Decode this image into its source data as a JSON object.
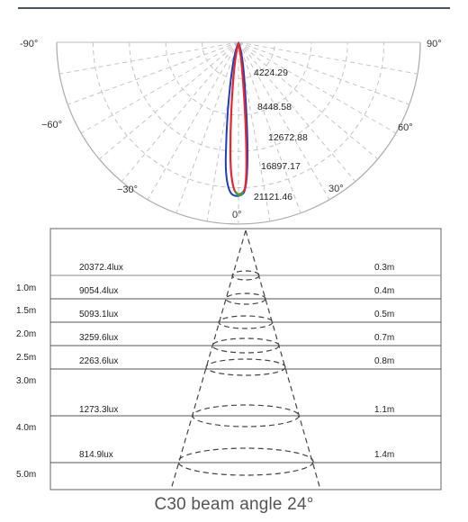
{
  "polar": {
    "angle_labels": {
      "neg90": "-90°",
      "pos90": "90°",
      "neg60": "−60°",
      "pos60": "60°",
      "neg30": "−30°",
      "pos30": "30°",
      "zero": "0°"
    },
    "rings": [
      "4224.29",
      "8448.58",
      "12672.88",
      "16897.17",
      "21121.46"
    ],
    "curve_colors": {
      "red": "#e8262b",
      "blue": "#1b3fbf",
      "green": "#2aa84a"
    }
  },
  "cone": {
    "rows": [
      {
        "height": "",
        "lux": "20372.4lux",
        "diameter": "0.3m"
      },
      {
        "height": "1.0m",
        "lux": "9054.4lux",
        "diameter": "0.4m"
      },
      {
        "height": "1.5m",
        "lux": "5093.1lux",
        "diameter": "0.5m"
      },
      {
        "height": "2.0m",
        "lux": "3259.6lux",
        "diameter": "0.7m"
      },
      {
        "height": "2.5m",
        "lux": "2263.6lux",
        "diameter": "0.8m"
      },
      {
        "height": "3.0m",
        "lux": "",
        "diameter": ""
      },
      {
        "height": "4.0m",
        "lux": "1273.3lux",
        "diameter": "1.1m"
      },
      {
        "height": "5.0m",
        "lux": "814.9lux",
        "diameter": "1.4m"
      }
    ]
  },
  "caption": "C30 beam angle 24°"
}
